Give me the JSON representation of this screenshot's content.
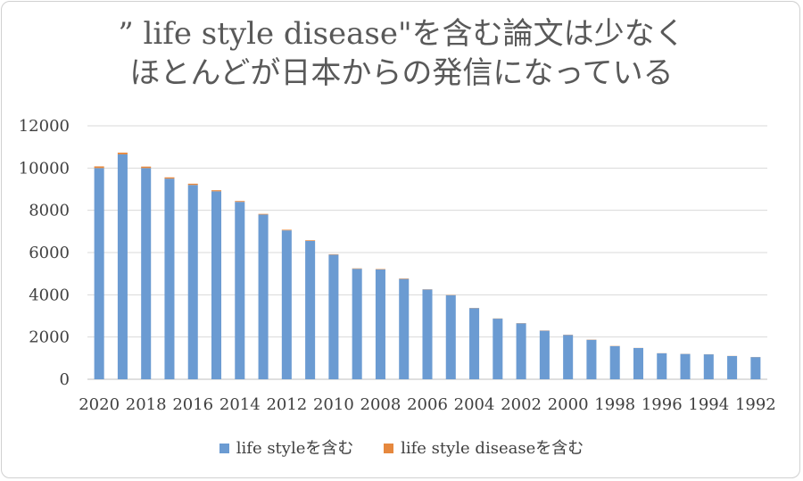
{
  "title": {
    "line1": "” life style disease\"を含む論文は少なく",
    "line2": "ほとんどが日本からの発信になっている"
  },
  "colors": {
    "series1": "#6b9bd2",
    "series2": "#e6883e",
    "grid": "#d9d9d9",
    "axis": "#bfbfbf"
  },
  "chart_data": {
    "type": "bar",
    "stacked": true,
    "categories": [
      "2020",
      "2019",
      "2018",
      "2017",
      "2016",
      "2015",
      "2014",
      "2013",
      "2012",
      "2011",
      "2010",
      "2009",
      "2008",
      "2007",
      "2006",
      "2005",
      "2004",
      "2003",
      "2002",
      "2001",
      "2000",
      "1999",
      "1998",
      "1997",
      "1996",
      "1995",
      "1994",
      "1993",
      "1992"
    ],
    "x_tick_labels": [
      "2020",
      "2018",
      "2016",
      "2014",
      "2012",
      "2010",
      "2008",
      "2006",
      "2004",
      "2002",
      "2000",
      "1998",
      "1996",
      "1994",
      "1992"
    ],
    "series": [
      {
        "name": "life styleを含む",
        "values": [
          10000,
          10650,
          10000,
          9500,
          9200,
          8900,
          8400,
          7800,
          7050,
          6550,
          5900,
          5230,
          5200,
          4750,
          4250,
          3980,
          3370,
          2870,
          2650,
          2300,
          2100,
          1870,
          1570,
          1480,
          1230,
          1200,
          1180,
          1100,
          1050
        ]
      },
      {
        "name": "life style diseaseを含む",
        "values": [
          80,
          80,
          70,
          60,
          60,
          50,
          40,
          30,
          30,
          30,
          20,
          20,
          20,
          20,
          10,
          10,
          10,
          10,
          10,
          10,
          10,
          10,
          10,
          5,
          5,
          5,
          5,
          5,
          5
        ]
      }
    ],
    "yticks": [
      0,
      2000,
      4000,
      6000,
      8000,
      10000,
      12000
    ],
    "ylim": [
      0,
      12000
    ],
    "grid": true,
    "legend_position": "bottom"
  }
}
